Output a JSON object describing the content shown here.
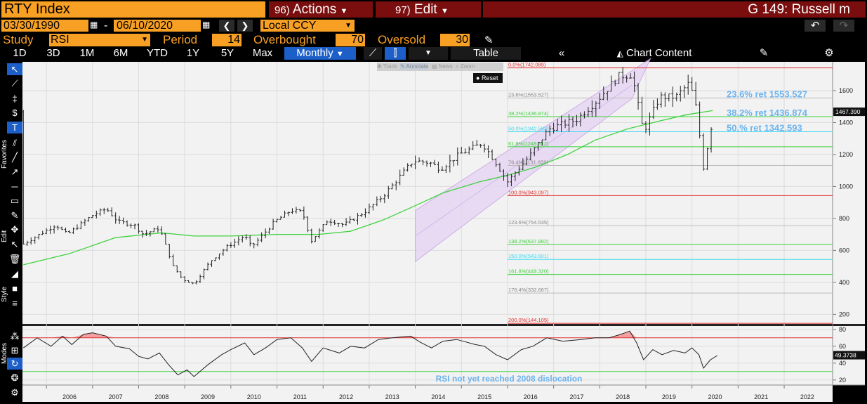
{
  "header": {
    "ticker": "RTY Index",
    "actions_num": "96)",
    "actions_label": "Actions",
    "edit_num": "97)",
    "edit_label": "Edit",
    "graph_id": "G 149: Russell m"
  },
  "controls": {
    "start_date": "03/30/1990",
    "date_sep": "-",
    "end_date": "06/10/2020",
    "currency": "Local CCY",
    "study_label": "Study",
    "study_value": "RSI",
    "period_label": "Period",
    "period_value": "14",
    "overbought_label": "Overbought",
    "overbought_value": "70",
    "oversold_label": "Oversold",
    "oversold_value": "30"
  },
  "tabs": [
    "1D",
    "3D",
    "1M",
    "6M",
    "YTD",
    "1Y",
    "5Y",
    "Max"
  ],
  "frequency": "Monthly",
  "table_label": "Table",
  "chart_content_label": "Chart Content",
  "toolbar_popup": {
    "track": "Track",
    "annotate": "Annotate",
    "news": "News",
    "zoom": "Zoom",
    "reset": "Reset"
  },
  "side_labels": {
    "favorites": "Favorites",
    "edit": "Edit",
    "style": "Style",
    "modes": "Modes"
  },
  "colors": {
    "accent": "#f8a023",
    "header_red": "#7a0e0e",
    "ma_line": "#3fd23f",
    "fib_red": "#e03030",
    "annot_blue": "#6cb4f0"
  },
  "chart_data": [
    {
      "type": "ohlc",
      "x_ticks": [
        "2006",
        "2007",
        "2008",
        "2009",
        "2010",
        "2011",
        "2012",
        "2013",
        "2014",
        "2015",
        "2016",
        "2017",
        "2018",
        "2019",
        "2020",
        "2021",
        "2022"
      ],
      "y_ticks": [
        200,
        400,
        600,
        800,
        1000,
        1200,
        1400,
        1600
      ],
      "ylim": [
        140,
        1780
      ],
      "last_price": "1467.390",
      "price_points": [
        [
          2005.5,
          640
        ],
        [
          2006.2,
          760
        ],
        [
          2006.45,
          700
        ],
        [
          2007.0,
          820
        ],
        [
          2007.3,
          860
        ],
        [
          2007.55,
          780
        ],
        [
          2007.9,
          760
        ],
        [
          2008.1,
          700
        ],
        [
          2008.45,
          740
        ],
        [
          2008.75,
          500
        ],
        [
          2008.95,
          420
        ],
        [
          2009.2,
          390
        ],
        [
          2009.55,
          530
        ],
        [
          2009.9,
          620
        ],
        [
          2010.3,
          690
        ],
        [
          2010.45,
          620
        ],
        [
          2010.95,
          780
        ],
        [
          2011.3,
          850
        ],
        [
          2011.55,
          840
        ],
        [
          2011.75,
          660
        ],
        [
          2012.1,
          790
        ],
        [
          2012.45,
          760
        ],
        [
          2012.9,
          840
        ],
        [
          2013.3,
          940
        ],
        [
          2013.6,
          1040
        ],
        [
          2013.95,
          1160
        ],
        [
          2014.3,
          1150
        ],
        [
          2014.55,
          1110
        ],
        [
          2014.95,
          1200
        ],
        [
          2015.45,
          1270
        ],
        [
          2015.7,
          1170
        ],
        [
          2016.0,
          1030
        ],
        [
          2016.5,
          1200
        ],
        [
          2016.9,
          1360
        ],
        [
          2017.5,
          1420
        ],
        [
          2017.95,
          1540
        ],
        [
          2018.4,
          1690
        ],
        [
          2018.7,
          1700
        ],
        [
          2018.95,
          1340
        ],
        [
          2019.3,
          1560
        ],
        [
          2019.65,
          1560
        ],
        [
          2019.95,
          1650
        ],
        [
          2020.1,
          1480
        ],
        [
          2020.25,
          1120
        ],
        [
          2020.45,
          1420
        ],
        [
          2020.45,
          1467
        ]
      ],
      "ma_points": [
        [
          2005.5,
          510
        ],
        [
          2006.5,
          580
        ],
        [
          2007.5,
          680
        ],
        [
          2008.5,
          710
        ],
        [
          2009.2,
          690
        ],
        [
          2010.0,
          690
        ],
        [
          2011.0,
          700
        ],
        [
          2011.9,
          700
        ],
        [
          2012.6,
          720
        ],
        [
          2013.3,
          790
        ],
        [
          2014.0,
          880
        ],
        [
          2014.6,
          960
        ],
        [
          2015.4,
          1030
        ],
        [
          2016.0,
          1070
        ],
        [
          2016.6,
          1120
        ],
        [
          2017.3,
          1200
        ],
        [
          2017.9,
          1290
        ],
        [
          2018.6,
          1360
        ],
        [
          2019.3,
          1410
        ],
        [
          2019.9,
          1450
        ],
        [
          2020.45,
          1475
        ]
      ],
      "fib_levels": [
        {
          "label": "0.0%(1742.089)",
          "value": 1742.089,
          "color": "#e03030"
        },
        {
          "label": "23.6%(1553.527)",
          "value": 1553.527,
          "color": "#bbbbbb"
        },
        {
          "label": "38.2%(1436.874)",
          "value": 1436.874,
          "color": "#3fd23f"
        },
        {
          "label": "50.0%(1342.593)",
          "value": 1342.593,
          "color": "#40d8f0"
        },
        {
          "label": "61.8%(1248.312)",
          "value": 1248.312,
          "color": "#3fd23f"
        },
        {
          "label": "76.4%(1131.659)",
          "value": 1131.659,
          "color": "#bbbbbb"
        },
        {
          "label": "100.0%(943.097)",
          "value": 943.097,
          "color": "#e03030"
        },
        {
          "label": "123.6%(754.535)",
          "value": 754.535,
          "color": "#bbbbbb"
        },
        {
          "label": "138.2%(637.882)",
          "value": 637.882,
          "color": "#3fd23f"
        },
        {
          "label": "150.0%(543.601)",
          "value": 543.601,
          "color": "#40d8f0"
        },
        {
          "label": "161.8%(449.320)",
          "value": 449.32,
          "color": "#3fd23f"
        },
        {
          "label": "176.4%(332.667)",
          "value": 332.667,
          "color": "#bbbbbb"
        },
        {
          "label": "200.0%(144.105)",
          "value": 144.105,
          "color": "#e03030"
        }
      ],
      "fib_start_x": 2016.0,
      "channel": {
        "lower": [
          [
            2014.0,
            530
          ],
          [
            2018.7,
            1550
          ]
        ],
        "upper": [
          [
            2014.0,
            850
          ],
          [
            2019.1,
            1800
          ]
        ]
      },
      "annotations": [
        {
          "text": "23.6% ret 1553.527",
          "value": 1553.527
        },
        {
          "text": "38.2% ret 1436.874",
          "value": 1436.874
        },
        {
          "text": "50.% ret 1342.593",
          "value": 1342.593
        }
      ]
    },
    {
      "type": "line",
      "name": "RSI",
      "y_ticks": [
        20,
        40,
        60,
        80
      ],
      "ylim": [
        14,
        84
      ],
      "overbought": 70,
      "oversold": 30,
      "last_value": "49.3738",
      "annotation": "RSI not yet reached 2008 dislocation",
      "points": [
        [
          2005.5,
          58
        ],
        [
          2005.8,
          70
        ],
        [
          2006.1,
          60
        ],
        [
          2006.35,
          72
        ],
        [
          2006.55,
          62
        ],
        [
          2006.8,
          74
        ],
        [
          2007.0,
          76
        ],
        [
          2007.3,
          72
        ],
        [
          2007.5,
          60
        ],
        [
          2007.8,
          57
        ],
        [
          2008.0,
          48
        ],
        [
          2008.2,
          45
        ],
        [
          2008.45,
          52
        ],
        [
          2008.65,
          38
        ],
        [
          2008.85,
          26
        ],
        [
          2009.05,
          32
        ],
        [
          2009.2,
          24
        ],
        [
          2009.5,
          38
        ],
        [
          2009.8,
          50
        ],
        [
          2010.0,
          56
        ],
        [
          2010.3,
          64
        ],
        [
          2010.5,
          50
        ],
        [
          2010.75,
          58
        ],
        [
          2011.0,
          68
        ],
        [
          2011.3,
          70
        ],
        [
          2011.55,
          58
        ],
        [
          2011.75,
          42
        ],
        [
          2012.0,
          58
        ],
        [
          2012.35,
          52
        ],
        [
          2012.6,
          60
        ],
        [
          2012.9,
          58
        ],
        [
          2013.2,
          68
        ],
        [
          2013.5,
          70
        ],
        [
          2013.9,
          72
        ],
        [
          2014.1,
          65
        ],
        [
          2014.35,
          58
        ],
        [
          2014.6,
          66
        ],
        [
          2014.9,
          68
        ],
        [
          2015.3,
          62
        ],
        [
          2015.5,
          60
        ],
        [
          2015.75,
          50
        ],
        [
          2016.0,
          44
        ],
        [
          2016.3,
          56
        ],
        [
          2016.55,
          60
        ],
        [
          2016.85,
          70
        ],
        [
          2017.2,
          66
        ],
        [
          2017.6,
          68
        ],
        [
          2017.9,
          70
        ],
        [
          2018.2,
          70
        ],
        [
          2018.45,
          74
        ],
        [
          2018.65,
          78
        ],
        [
          2018.8,
          64
        ],
        [
          2018.95,
          44
        ],
        [
          2019.15,
          56
        ],
        [
          2019.35,
          50
        ],
        [
          2019.6,
          55
        ],
        [
          2019.85,
          52
        ],
        [
          2020.0,
          58
        ],
        [
          2020.15,
          50
        ],
        [
          2020.25,
          34
        ],
        [
          2020.4,
          44
        ],
        [
          2020.55,
          49
        ]
      ]
    }
  ]
}
